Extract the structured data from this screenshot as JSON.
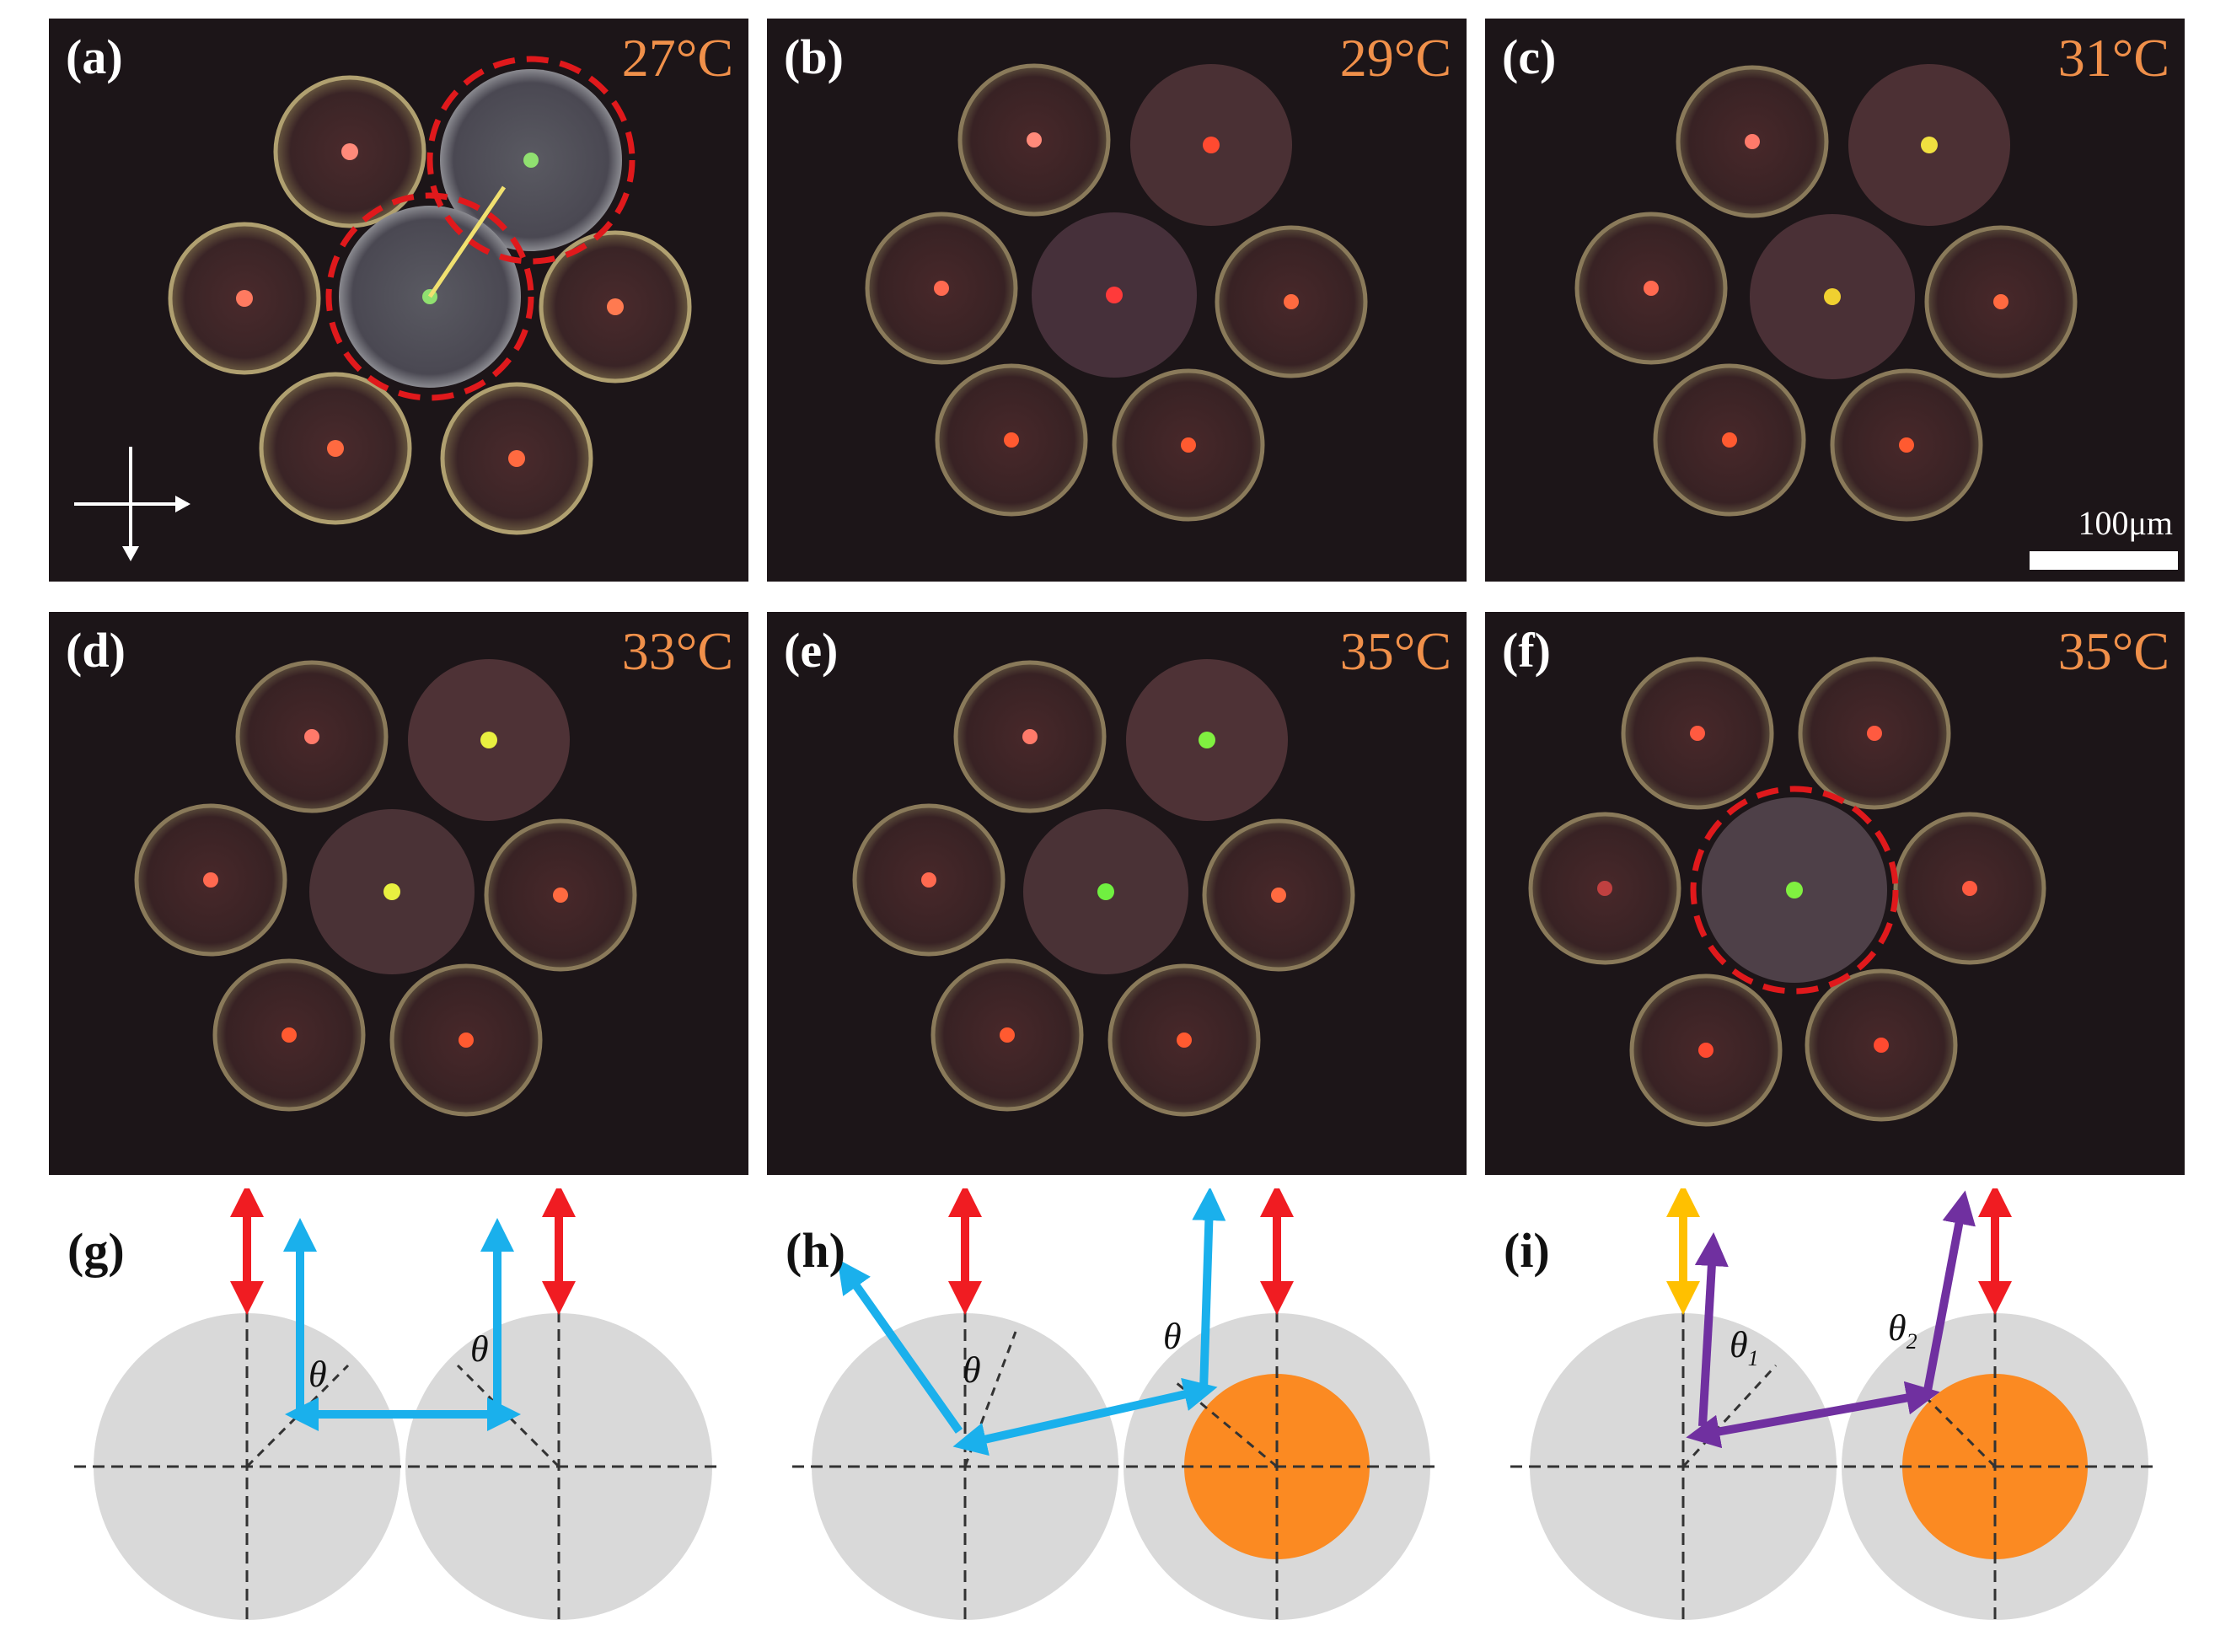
{
  "figure": {
    "panels": [
      {
        "label": "(a)",
        "temperature": "27°C"
      },
      {
        "label": "(b)",
        "temperature": "29°C"
      },
      {
        "label": "(c)",
        "temperature": "31°C"
      },
      {
        "label": "(d)",
        "temperature": "33°C"
      },
      {
        "label": "(e)",
        "temperature": "35°C"
      },
      {
        "label": "(f)",
        "temperature": "35°C"
      }
    ],
    "scale_bar_label": "100μm",
    "diagrams": [
      {
        "label": "(g)",
        "angle_left": "θ",
        "angle_right": "θ"
      },
      {
        "label": "(h)",
        "angle_left": "θ",
        "angle_right": "θ"
      },
      {
        "label": "(i)",
        "angle_left": "θ",
        "angle_left_sub": "1",
        "angle_right": "θ",
        "angle_right_sub": "2"
      }
    ]
  },
  "colors": {
    "panel_background": "#1c1518",
    "temperature_text": "#f0904a",
    "highlight_circle": "#e0191c",
    "arrow_red": "#f01c22",
    "arrow_blue": "#1ab0ec",
    "arrow_yellow": "#ffc000",
    "arrow_purple": "#7030a0",
    "droplet_gray": "#d9d9d9",
    "core_orange": "#fb8a22"
  }
}
